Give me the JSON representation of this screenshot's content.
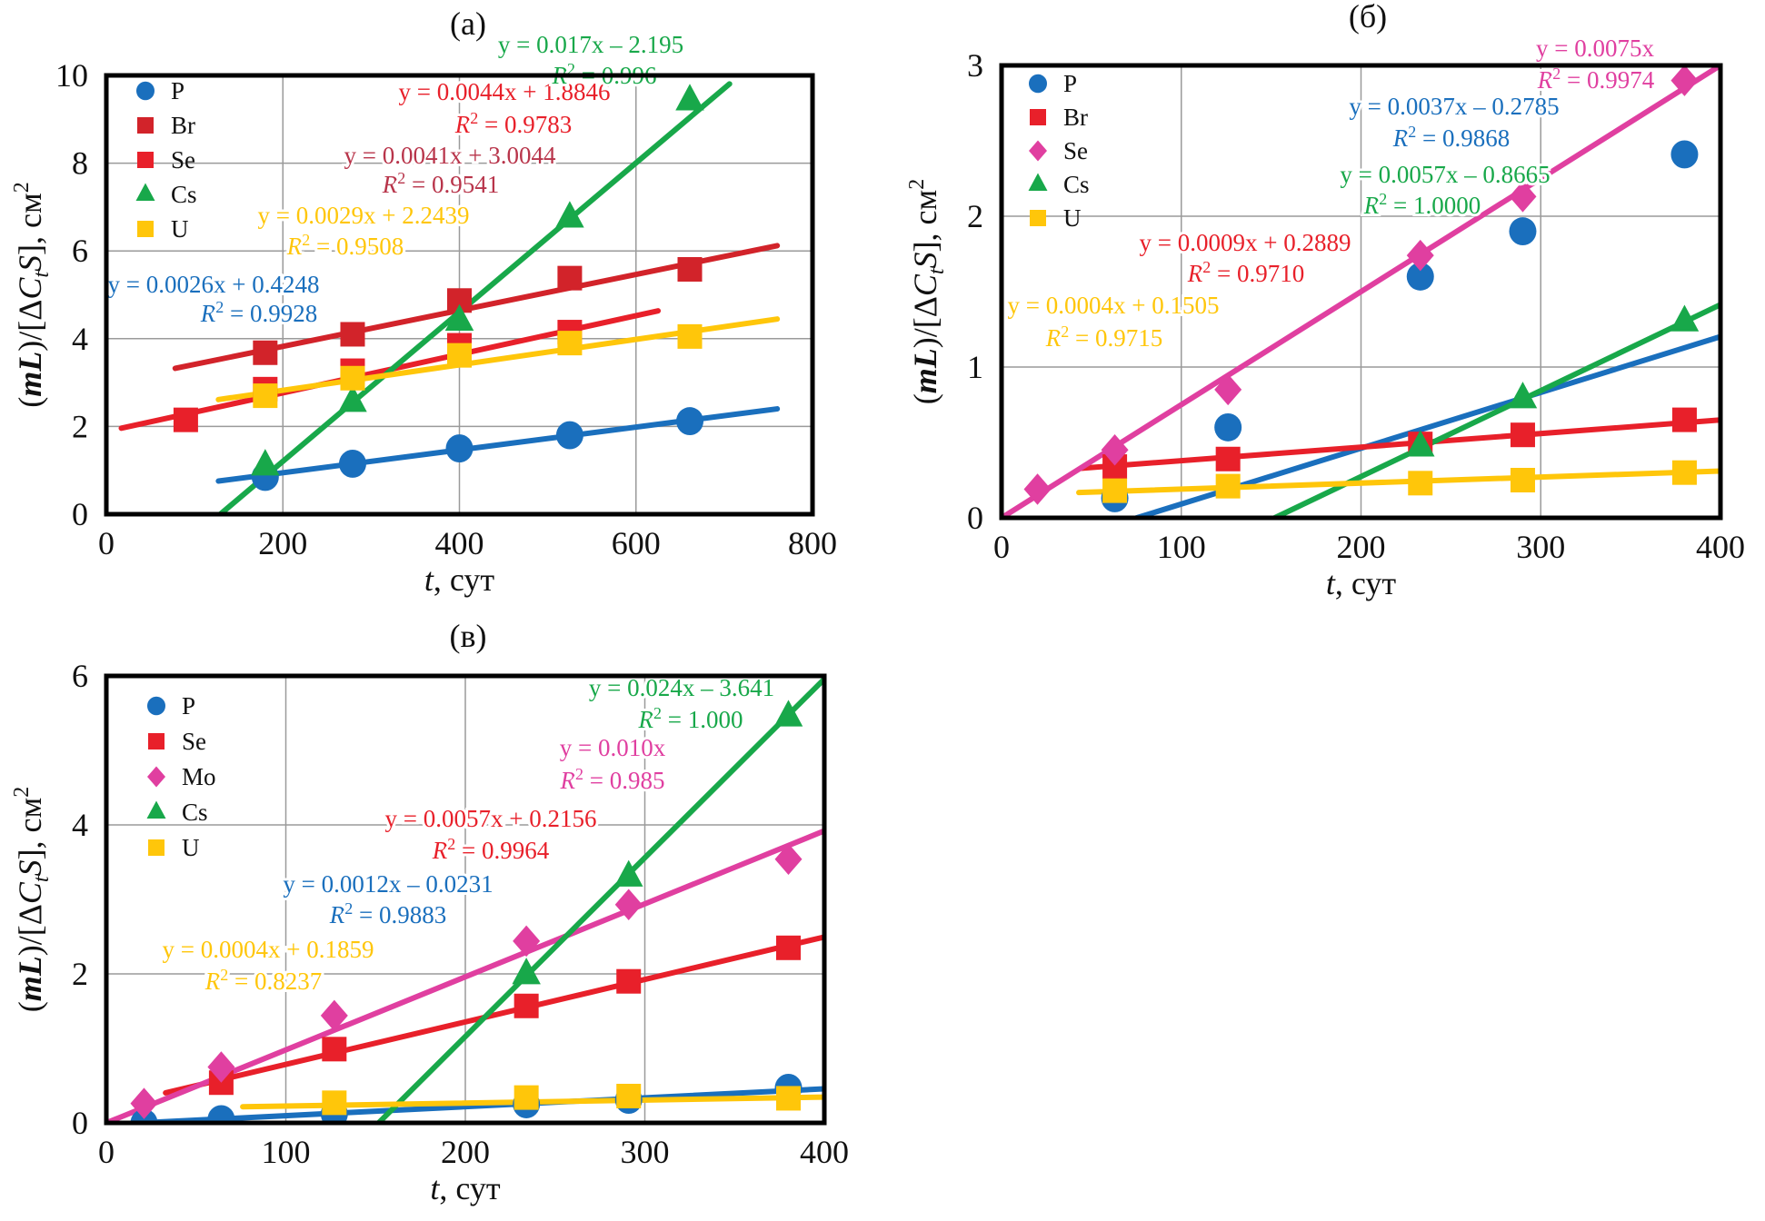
{
  "figure": {
    "xlabel_var": "t",
    "xlabel_unit": ", сут",
    "ylabel_parts": [
      "(",
      "mL",
      ")/[Δ",
      "C",
      "t",
      "S",
      "], см",
      "2"
    ]
  },
  "colors": {
    "P": "#1a6fbd",
    "Br_a": "#d2232a",
    "Se_a": "#e8202a",
    "Br": "#e8202a",
    "Se": "#e03fa0",
    "Mo": "#e03fa0",
    "Cs": "#18a84a",
    "U": "#ffc60a",
    "eq_Br_a": "#b8344a",
    "eq_Se_a": "#e8202a"
  },
  "chart_data": [
    {
      "id": "a",
      "type": "scatter",
      "title": "(а)",
      "xlabel": "t, сут",
      "ylabel": "(mL)/[ΔCtS], см2",
      "xlim": [
        0,
        800
      ],
      "ylim": [
        0,
        10
      ],
      "xticks": [
        0,
        200,
        400,
        600,
        800
      ],
      "yticks": [
        0,
        2,
        4,
        6,
        8,
        10
      ],
      "grid": true,
      "legend_position": "top-left",
      "series": [
        {
          "name": "P",
          "marker": "circle",
          "color_key": "P",
          "x": [
            180,
            279,
            400,
            525,
            661
          ],
          "y": [
            0.85,
            1.15,
            1.5,
            1.8,
            2.12
          ],
          "fit": {
            "slope": 0.0026,
            "intercept": 0.4248,
            "x_range": [
              127,
              760
            ],
            "equation": "y = 0.0026x + 0.4248",
            "r2": "R2 = 0.9928",
            "r2_value": "= 0.9928"
          }
        },
        {
          "name": "Br",
          "marker": "square",
          "color_key": "Br_a",
          "x": [
            180,
            279,
            400,
            525,
            661
          ],
          "y": [
            3.68,
            4.1,
            4.87,
            5.38,
            5.58
          ],
          "fit": {
            "slope": 0.0041,
            "intercept": 3.0044,
            "x_range": [
              78,
              760
            ],
            "equation": "y = 0.0041x + 3.0044",
            "r2": "R2 = 0.9541",
            "r2_value": "= 0.9541"
          }
        },
        {
          "name": "Se",
          "marker": "square",
          "color_key": "Se_a",
          "x": [
            90,
            180,
            279,
            400,
            525
          ],
          "y": [
            2.15,
            2.85,
            3.27,
            3.85,
            4.15
          ],
          "fit": {
            "slope": 0.0044,
            "intercept": 1.8846,
            "x_range": [
              17,
              625
            ],
            "equation": "y = 0.0044x + 1.8846",
            "r2": "R2 = 0.9783",
            "r2_value": "= 0.9783"
          }
        },
        {
          "name": "Cs",
          "marker": "triangle",
          "color_key": "Cs",
          "x": [
            180,
            279,
            400,
            525,
            661
          ],
          "y": [
            1.1,
            2.55,
            4.4,
            6.75,
            9.42
          ],
          "fit": {
            "slope": 0.017,
            "intercept": -2.195,
            "x_range": [
              129,
              706
            ],
            "equation": "y = 0.017x – 2.195",
            "r2": "R2 = 0.996",
            "r2_value": "= 0.996"
          }
        },
        {
          "name": "U",
          "marker": "square",
          "color_key": "U",
          "x": [
            180,
            279,
            400,
            525,
            661
          ],
          "y": [
            2.7,
            3.1,
            3.62,
            3.9,
            4.05
          ],
          "fit": {
            "slope": 0.0029,
            "intercept": 2.2439,
            "x_range": [
              127,
              760
            ],
            "equation": "y = 0.0029x + 2.2439",
            "r2": "R2 = 0.9508",
            "r2_value": "= 0.9508"
          }
        }
      ]
    },
    {
      "id": "b",
      "type": "scatter",
      "title": "(б)",
      "xlabel": "t, сут",
      "ylabel": "(mL)/[ΔCtS], см2",
      "xlim": [
        0,
        400
      ],
      "ylim": [
        0,
        3
      ],
      "xticks": [
        0,
        100,
        200,
        300,
        400
      ],
      "yticks": [
        0,
        1,
        2,
        3
      ],
      "grid": true,
      "legend_position": "top-left",
      "series": [
        {
          "name": "P",
          "marker": "circle",
          "color_key": "P",
          "x": [
            63,
            126,
            233,
            290,
            380
          ],
          "y": [
            0.13,
            0.6,
            1.6,
            1.9,
            2.41
          ],
          "fit": {
            "slope": 0.0037,
            "intercept": -0.2785,
            "x_range": [
              75,
              400
            ],
            "equation": "y = 0.0037x – 0.2785",
            "r2": "R2 = 0.9868",
            "r2_value": "= 0.9868"
          }
        },
        {
          "name": "Br",
          "marker": "square",
          "color_key": "Br",
          "x": [
            63,
            126,
            233,
            290,
            380
          ],
          "y": [
            0.34,
            0.39,
            0.49,
            0.55,
            0.65
          ],
          "fit": {
            "slope": 0.0009,
            "intercept": 0.2889,
            "x_range": [
              44,
              400
            ],
            "equation": "y = 0.0009x + 0.2889",
            "r2": "R2 = 0.9710",
            "r2_value": "= 0.9710"
          }
        },
        {
          "name": "Se",
          "marker": "diamond",
          "color_key": "Se",
          "x": [
            20,
            63,
            126,
            233,
            290,
            380
          ],
          "y": [
            0.19,
            0.45,
            0.85,
            1.74,
            2.13,
            2.9
          ],
          "fit": {
            "slope": 0.0075,
            "intercept": 0,
            "x_range": [
              0,
              400
            ],
            "equation": "y = 0.0075x",
            "r2": "R2 = 0.9974",
            "r2_value": "= 0.9974"
          }
        },
        {
          "name": "Cs",
          "marker": "triangle",
          "color_key": "Cs",
          "x": [
            233,
            290,
            380
          ],
          "y": [
            0.47,
            0.79,
            1.3
          ],
          "fit": {
            "slope": 0.0057,
            "intercept": -0.8665,
            "x_range": [
              152,
              400
            ],
            "equation": "y = 0.0057x – 0.8665",
            "r2": "R2 = 1.0000",
            "r2_value": "= 1.0000"
          }
        },
        {
          "name": "U",
          "marker": "square",
          "color_key": "U",
          "x": [
            63,
            126,
            233,
            290,
            380
          ],
          "y": [
            0.18,
            0.21,
            0.23,
            0.25,
            0.3
          ],
          "fit": {
            "slope": 0.0004,
            "intercept": 0.1505,
            "x_range": [
              43,
              400
            ],
            "equation": "y = 0.0004x + 0.1505",
            "r2": "R2 = 0.9715",
            "r2_value": "= 0.9715"
          }
        }
      ]
    },
    {
      "id": "v",
      "type": "scatter",
      "title": "(в)",
      "xlabel": "t, сут",
      "ylabel": "(mL)/[ΔCtS], см2",
      "xlim": [
        0,
        400
      ],
      "ylim": [
        0,
        6
      ],
      "xticks": [
        0,
        100,
        200,
        300,
        400
      ],
      "yticks": [
        0,
        2,
        4,
        6
      ],
      "grid": true,
      "legend_position": "top-left",
      "series": [
        {
          "name": "P",
          "marker": "circle",
          "color_key": "P",
          "x": [
            21,
            64,
            127,
            234,
            291,
            380
          ],
          "y": [
            0.0,
            0.05,
            0.12,
            0.25,
            0.31,
            0.47
          ],
          "fit": {
            "slope": 0.0012,
            "intercept": -0.0231,
            "x_range": [
              19,
              400
            ],
            "equation": "y = 0.0012x – 0.0231",
            "r2": "R2 = 0.9883",
            "r2_value": "= 0.9883"
          }
        },
        {
          "name": "Se",
          "marker": "square",
          "color_key": "Br",
          "x": [
            64,
            127,
            234,
            291,
            380
          ],
          "y": [
            0.54,
            0.99,
            1.57,
            1.9,
            2.35
          ],
          "fit": {
            "slope": 0.0057,
            "intercept": 0.2156,
            "x_range": [
              33,
              400
            ],
            "equation": "y = 0.0057x + 0.2156",
            "r2": "R2 = 0.9964",
            "r2_value": "= 0.9964"
          }
        },
        {
          "name": "Mo",
          "marker": "diamond",
          "color_key": "Mo",
          "x": [
            21,
            64,
            127,
            234,
            291,
            380
          ],
          "y": [
            0.26,
            0.75,
            1.44,
            2.44,
            2.93,
            3.54
          ],
          "fit": {
            "slope": 0.0098,
            "intercept": 0,
            "x_range": [
              0,
              400
            ],
            "equation": "y = 0.010x",
            "r2": "R2 = 0.985",
            "r2_value": "= 0.985"
          }
        },
        {
          "name": "Cs",
          "marker": "triangle",
          "color_key": "Cs",
          "x": [
            234,
            291,
            380
          ],
          "y": [
            1.99,
            3.3,
            5.45
          ],
          "fit": {
            "slope": 0.024,
            "intercept": -3.641,
            "x_range": [
              152,
              400
            ],
            "equation": "y = 0.024x – 3.641",
            "r2": "R2 = 1.000",
            "r2_value": "= 1.000"
          }
        },
        {
          "name": "U",
          "marker": "square",
          "color_key": "U",
          "x": [
            127,
            234,
            291,
            380
          ],
          "y": [
            0.27,
            0.34,
            0.36,
            0.33
          ],
          "fit": {
            "slope": 0.0004,
            "intercept": 0.1859,
            "x_range": [
              76,
              400
            ],
            "equation": "y = 0.0004x + 0.1859",
            "r2": "R2 = 0.8237",
            "r2_value": "= 0.8237"
          }
        }
      ]
    }
  ]
}
